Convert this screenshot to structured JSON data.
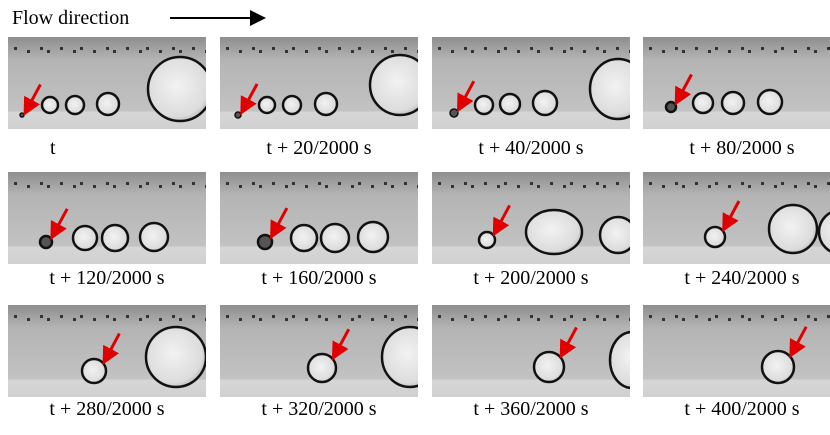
{
  "header": {
    "label": "Flow direction"
  },
  "panels": [
    {
      "caption": "t"
    },
    {
      "caption": "t + 20/2000 s"
    },
    {
      "caption": "t + 40/2000 s"
    },
    {
      "caption": "t + 80/2000 s"
    },
    {
      "caption": "t + 120/2000 s"
    },
    {
      "caption": "t + 160/2000 s"
    },
    {
      "caption": "t + 200/2000 s"
    },
    {
      "caption": "t + 240/2000 s"
    },
    {
      "caption": "t + 280/2000 s"
    },
    {
      "caption": "t + 320/2000 s"
    },
    {
      "caption": "t + 360/2000 s"
    },
    {
      "caption": "t + 400/2000 s"
    }
  ]
}
